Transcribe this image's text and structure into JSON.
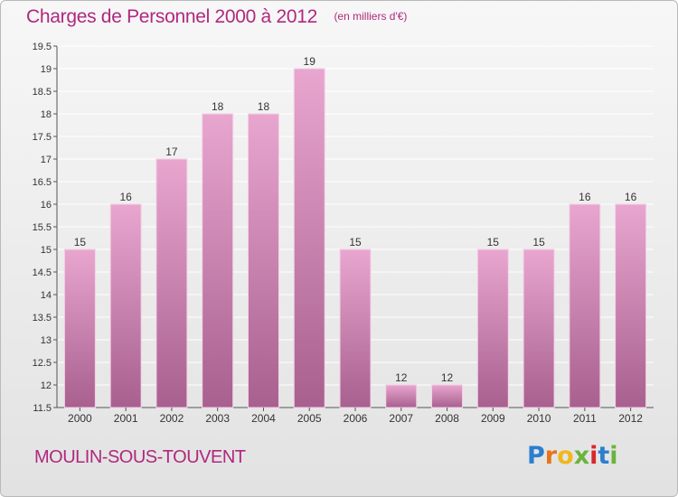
{
  "header": {
    "title": "Charges de Personnel 2000 à 2012",
    "subtitle": "(en milliers d'€)"
  },
  "footer": {
    "commune": "MOULIN-SOUS-TOUVENT",
    "logo": "Proxiti",
    "logo_letters": [
      {
        "char": "P",
        "color": "#2a7fd0"
      },
      {
        "char": "r",
        "color": "#e8741a"
      },
      {
        "char": "o",
        "color": "#f0b81c"
      },
      {
        "char": "x",
        "color": "#6ab43c"
      },
      {
        "char": "i",
        "color": "#d8282c"
      },
      {
        "char": "t",
        "color": "#2a7fd0"
      },
      {
        "char": "i",
        "color": "#6ab43c"
      }
    ]
  },
  "colors": {
    "accent": "#b0287e",
    "bar_top": "#e8a6cf",
    "bar_bottom": "#a8608f",
    "axis": "#555555",
    "grid": "#ffffff"
  },
  "chart_data": {
    "type": "bar",
    "categories": [
      "2000",
      "2001",
      "2002",
      "2003",
      "2004",
      "2005",
      "2006",
      "2007",
      "2008",
      "2009",
      "2010",
      "2011",
      "2012"
    ],
    "values": [
      15,
      16,
      17,
      18,
      18,
      19,
      15,
      12,
      12,
      15,
      15,
      16,
      16
    ],
    "value_labels": [
      "15",
      "16",
      "17",
      "18",
      "18",
      "19",
      "15",
      "12",
      "12",
      "15",
      "15",
      "16",
      "16"
    ],
    "ylim": [
      11.5,
      19.5
    ],
    "yticks": [
      11.5,
      12,
      12.5,
      13,
      13.5,
      14,
      14.5,
      15,
      15.5,
      16,
      16.5,
      17,
      17.5,
      18,
      18.5,
      19,
      19.5
    ],
    "ytick_labels": [
      "11.5",
      "12",
      "12.5",
      "13",
      "13.5",
      "14",
      "14.5",
      "15",
      "15.5",
      "16",
      "16.5",
      "17",
      "17.5",
      "18",
      "18.5",
      "19",
      "19.5"
    ],
    "grid": true,
    "xlabel": "",
    "ylabel": ""
  }
}
